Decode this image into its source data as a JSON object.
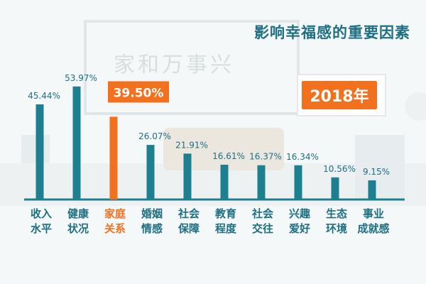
{
  "chart_data": {
    "type": "bar",
    "title": "影响幸福感的重要因素",
    "year_badge": "2018年",
    "watermark": "家和万事兴",
    "categories": [
      [
        "收入",
        "水平"
      ],
      [
        "健康",
        "状况"
      ],
      [
        "家庭",
        "关系"
      ],
      [
        "婚姻",
        "情感"
      ],
      [
        "社会",
        "保障"
      ],
      [
        "教育",
        "程度"
      ],
      [
        "社会",
        "交往"
      ],
      [
        "兴趣",
        "爱好"
      ],
      [
        "生态",
        "环境"
      ],
      [
        "事业",
        "成就感"
      ]
    ],
    "values": [
      45.44,
      53.97,
      39.5,
      26.07,
      21.91,
      16.61,
      16.37,
      16.34,
      10.56,
      9.15
    ],
    "value_labels": [
      "45.44%",
      "53.97%",
      "39.50%",
      "26.07%",
      "21.91%",
      "16.61%",
      "16.37%",
      "16.34%",
      "10.56%",
      "9.15%"
    ],
    "highlight_index": 2,
    "ylim": [
      0,
      60
    ],
    "colors": {
      "bar": "#1d7f8f",
      "highlight": "#f2711f",
      "label": "#1e6f82",
      "highlight_text": "#ffffff"
    }
  }
}
